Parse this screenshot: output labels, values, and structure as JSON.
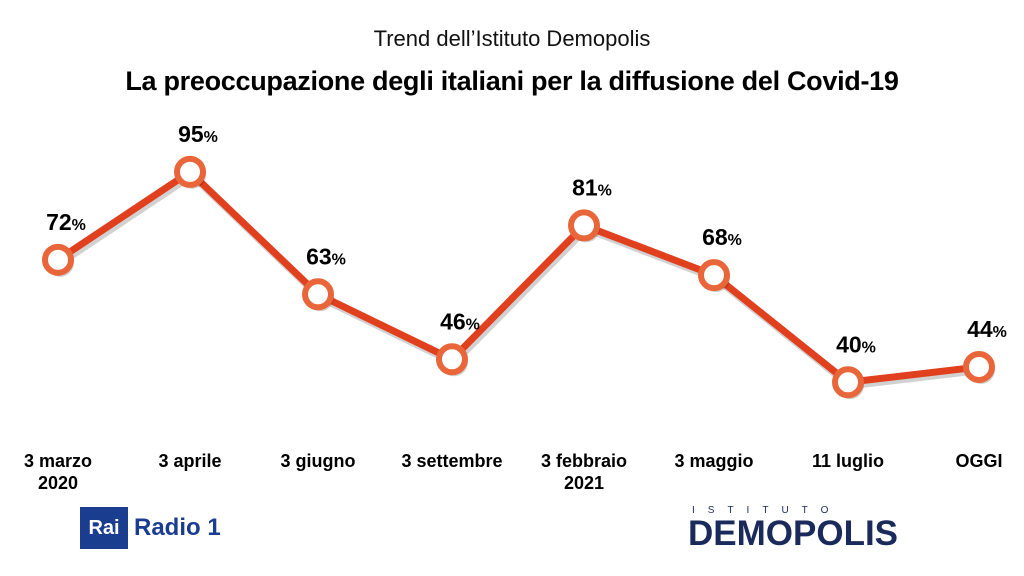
{
  "header": {
    "subtitle": "Trend dell’Istituto Demopolis",
    "title": "La preoccupazione degli italiani per la diffusione del Covid-19"
  },
  "chart_data": {
    "type": "line",
    "categories": [
      "3 marzo 2020",
      "3 aprile",
      "3 giugno",
      "3 settembre",
      "3 febbraio 2021",
      "3 maggio",
      "11 luglio",
      "OGGI"
    ],
    "category_lines": [
      [
        "3 marzo",
        "2020"
      ],
      [
        "3 aprile"
      ],
      [
        "3 giugno"
      ],
      [
        "3 settembre"
      ],
      [
        "3 febbraio",
        "2021"
      ],
      [
        "3 maggio"
      ],
      [
        "11 luglio"
      ],
      [
        "OGGI"
      ]
    ],
    "values": [
      72,
      95,
      63,
      46,
      81,
      68,
      40,
      44
    ],
    "value_suffix": "%",
    "line_color": "#e0401e",
    "marker_fill": "#ffffff",
    "marker_stroke": "#e9663a"
  },
  "logos": {
    "rai": "Rai",
    "radio": "Radio 1",
    "demopolis_top": "ISTITUTO",
    "demopolis_main": "DEMOPOLIS"
  }
}
